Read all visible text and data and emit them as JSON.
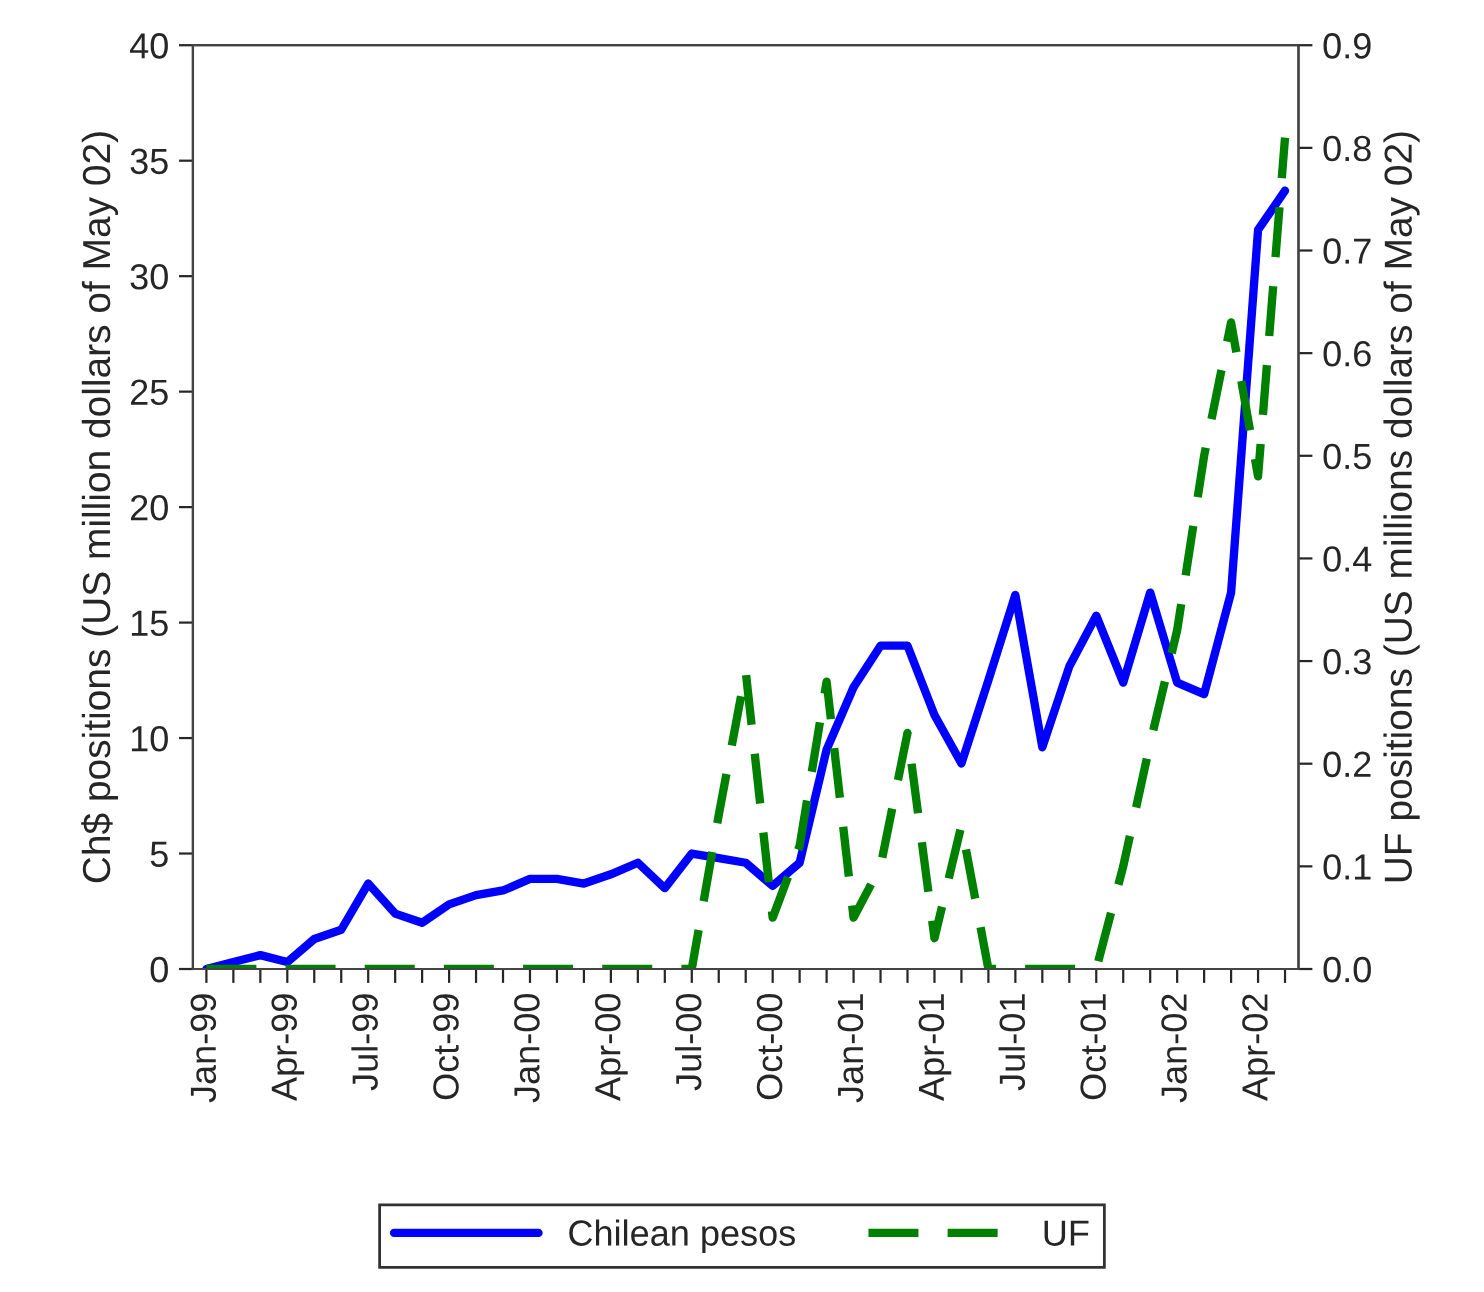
{
  "chart_data": {
    "type": "line",
    "ylabel": "Ch$ positions (US million dollars of May 02)",
    "y2label": "UF positions (US millions dollars of May 02)",
    "categories": [
      "Jan-99",
      null,
      null,
      "Apr-99",
      null,
      null,
      "Jul-99",
      null,
      null,
      "Oct-99",
      null,
      null,
      "Jan-00",
      null,
      null,
      "Apr-00",
      null,
      null,
      "Jul-00",
      null,
      null,
      "Oct-00",
      null,
      null,
      "Jan-01",
      null,
      null,
      "Apr-01",
      null,
      null,
      "Jul-01",
      null,
      null,
      "Oct-01",
      null,
      null,
      "Jan-02",
      null,
      null,
      "Apr-02",
      null
    ],
    "series": [
      {
        "name": "Chilean pesos",
        "color": "#0000ff",
        "line_style": "solid",
        "values": [
          0,
          0.3,
          0.6,
          0.3,
          1.3,
          1.7,
          3.7,
          2.4,
          2.0,
          2.8,
          3.2,
          3.4,
          3.9,
          3.9,
          3.7,
          4.1,
          4.6,
          3.5,
          5.0,
          4.8,
          4.6,
          3.6,
          4.6,
          9.5,
          12.2,
          14.0,
          14.0,
          11.0,
          8.9,
          12.5,
          16.2,
          9.6,
          13.1,
          15.3,
          12.4,
          16.3,
          12.4,
          11.9,
          16.3,
          32.0,
          33.7
        ]
      },
      {
        "name": "UF",
        "color": "#008000",
        "line_style": "dashed",
        "axis": "y2",
        "values": [
          0,
          0,
          0,
          0,
          0,
          0,
          0,
          0,
          0,
          0,
          0,
          0,
          0,
          0,
          0,
          0,
          0,
          0,
          0,
          0.15,
          0.29,
          0.05,
          0.12,
          0.28,
          0.05,
          0.1,
          0.23,
          0.03,
          0.14,
          0,
          0,
          0,
          0,
          0,
          0.1,
          0.22,
          0.33,
          0.5,
          0.63,
          0.48,
          0.81
        ]
      }
    ],
    "ylim": [
      0,
      40
    ],
    "yticks": [
      0,
      5,
      10,
      15,
      20,
      25,
      30,
      35,
      40
    ],
    "y2lim": [
      0,
      0.9
    ],
    "y2ticks": [
      {
        "value": 0,
        "label": "0.0"
      },
      0.1,
      0.2,
      0.3,
      0.4,
      0.5,
      0.6,
      0.7,
      0.8,
      0.9
    ],
    "grid": false,
    "legend": "bottom"
  }
}
